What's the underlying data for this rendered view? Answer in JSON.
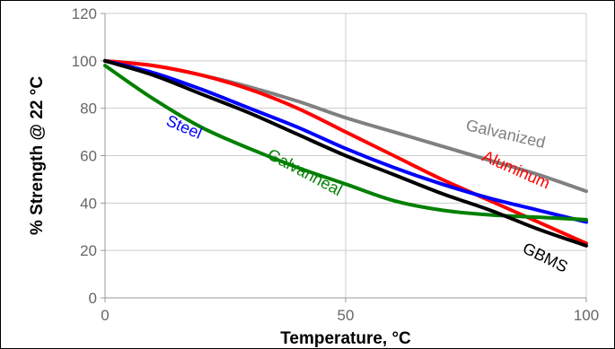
{
  "chart_data": {
    "type": "line",
    "title": "",
    "xlabel": "Temperature, °C",
    "ylabel": "% Strength @ 22 °C",
    "xlim": [
      0,
      100
    ],
    "ylim": [
      0,
      120
    ],
    "x_ticks": [
      0,
      50,
      100
    ],
    "y_ticks": [
      0,
      20,
      40,
      60,
      80,
      100,
      120
    ],
    "grid": true,
    "legend": "none",
    "series": [
      {
        "name": "Galvanized",
        "color": "#808080",
        "x": [
          0,
          10,
          20,
          30,
          40,
          50,
          60,
          70,
          80,
          90,
          100
        ],
        "y": [
          100,
          98,
          94,
          89,
          83,
          76,
          70,
          64,
          58,
          52,
          45
        ]
      },
      {
        "name": "Aluminum",
        "color": "#ff0000",
        "x": [
          0,
          10,
          20,
          30,
          40,
          50,
          60,
          70,
          80,
          90,
          100
        ],
        "y": [
          100,
          98,
          94,
          88,
          80,
          70,
          60,
          50,
          41,
          32,
          23
        ]
      },
      {
        "name": "Steel",
        "color": "#0000ff",
        "x": [
          0,
          10,
          20,
          30,
          40,
          50,
          60,
          70,
          80,
          90,
          100
        ],
        "y": [
          100,
          95,
          88,
          80,
          72,
          63,
          55,
          48,
          42,
          37,
          32
        ]
      },
      {
        "name": "Galvanneal",
        "color": "#008000",
        "x": [
          0,
          10,
          20,
          30,
          40,
          50,
          60,
          70,
          80,
          90,
          100
        ],
        "y": [
          98,
          84,
          72,
          63,
          55,
          48,
          41,
          37,
          35,
          34,
          33
        ]
      },
      {
        "name": "GBMS",
        "color": "#000000",
        "x": [
          0,
          10,
          20,
          30,
          40,
          50,
          60,
          70,
          80,
          90,
          100
        ],
        "y": [
          100,
          94,
          86,
          78,
          69,
          60,
          52,
          44,
          37,
          29,
          22
        ]
      }
    ],
    "annotations": [
      {
        "text": "Galvanized",
        "series": "Galvanized",
        "x": 83,
        "y": 67,
        "angle": 13,
        "color": "#808080"
      },
      {
        "text": "Aluminum",
        "series": "Aluminum",
        "x": 85,
        "y": 52,
        "angle": 24,
        "color": "#ff0000"
      },
      {
        "text": "Steel",
        "series": "Steel",
        "x": 16,
        "y": 70,
        "angle": 23,
        "color": "#0000ff"
      },
      {
        "text": "Galvanneal",
        "series": "Galvanneal",
        "x": 41,
        "y": 51,
        "angle": 28,
        "color": "#008000"
      },
      {
        "text": "GBMS",
        "series": "GBMS",
        "x": 91,
        "y": 15,
        "angle": 26,
        "color": "#000000"
      }
    ]
  }
}
